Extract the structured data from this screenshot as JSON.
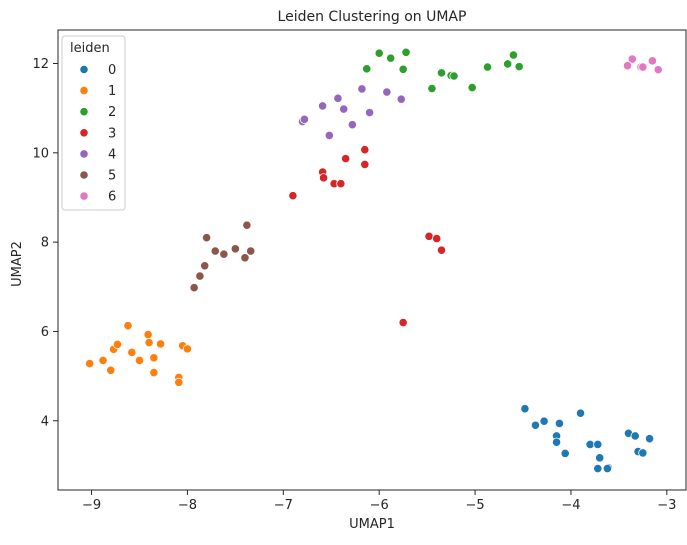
{
  "chart_data": {
    "type": "scatter",
    "title": "Leiden Clustering on UMAP",
    "xlabel": "UMAP1",
    "ylabel": "UMAP2",
    "xlim": [
      -9.35,
      -2.8
    ],
    "ylim": [
      2.45,
      12.75
    ],
    "xticks": [
      -9,
      -8,
      -7,
      -6,
      -5,
      -4,
      -3
    ],
    "yticks": [
      4,
      6,
      8,
      10,
      12
    ],
    "grid": false,
    "legend": {
      "title": "leiden",
      "placement": "top-left"
    },
    "series": [
      {
        "name": "0",
        "color": "#1f77b4",
        "points": [
          [
            -4.48,
            4.27
          ],
          [
            -4.37,
            3.9
          ],
          [
            -4.28,
            3.99
          ],
          [
            -4.15,
            3.66
          ],
          [
            -4.15,
            3.52
          ],
          [
            -4.12,
            3.94
          ],
          [
            -4.06,
            3.27
          ],
          [
            -3.9,
            4.17
          ],
          [
            -3.8,
            3.47
          ],
          [
            -3.72,
            3.47
          ],
          [
            -3.7,
            3.17
          ],
          [
            -3.72,
            2.93
          ],
          [
            -3.61,
            2.95
          ],
          [
            -3.62,
            2.93
          ],
          [
            -3.4,
            3.72
          ],
          [
            -3.33,
            3.66
          ],
          [
            -3.3,
            3.31
          ],
          [
            -3.25,
            3.28
          ],
          [
            -3.18,
            3.6
          ]
        ]
      },
      {
        "name": "1",
        "color": "#ff7f0e",
        "points": [
          [
            -9.02,
            5.28
          ],
          [
            -8.88,
            5.35
          ],
          [
            -8.8,
            5.13
          ],
          [
            -8.77,
            5.6
          ],
          [
            -8.73,
            5.71
          ],
          [
            -8.62,
            6.13
          ],
          [
            -8.58,
            5.53
          ],
          [
            -8.5,
            5.35
          ],
          [
            -8.41,
            5.93
          ],
          [
            -8.4,
            5.75
          ],
          [
            -8.35,
            5.41
          ],
          [
            -8.35,
            5.08
          ],
          [
            -8.28,
            5.72
          ],
          [
            -8.09,
            4.97
          ],
          [
            -8.09,
            4.86
          ],
          [
            -8.05,
            5.68
          ],
          [
            -8.0,
            5.61
          ]
        ]
      },
      {
        "name": "2",
        "color": "#2ca02c",
        "points": [
          [
            -6.13,
            11.88
          ],
          [
            -6.0,
            12.23
          ],
          [
            -5.88,
            12.12
          ],
          [
            -5.75,
            11.87
          ],
          [
            -5.72,
            12.25
          ],
          [
            -5.35,
            11.79
          ],
          [
            -5.25,
            11.73
          ],
          [
            -5.22,
            11.72
          ],
          [
            -5.45,
            11.44
          ],
          [
            -5.03,
            11.46
          ],
          [
            -4.87,
            11.92
          ],
          [
            -4.66,
            11.99
          ],
          [
            -4.6,
            12.19
          ],
          [
            -4.54,
            11.93
          ]
        ]
      },
      {
        "name": "3",
        "color": "#d62728",
        "points": [
          [
            -6.9,
            9.04
          ],
          [
            -6.59,
            9.57
          ],
          [
            -6.58,
            9.44
          ],
          [
            -6.47,
            9.31
          ],
          [
            -6.4,
            9.31
          ],
          [
            -6.35,
            9.87
          ],
          [
            -6.15,
            10.07
          ],
          [
            -6.15,
            9.74
          ],
          [
            -5.48,
            8.13
          ],
          [
            -5.4,
            8.08
          ],
          [
            -5.35,
            7.82
          ],
          [
            -5.75,
            6.2
          ]
        ]
      },
      {
        "name": "4",
        "color": "#9467bd",
        "points": [
          [
            -6.8,
            10.7
          ],
          [
            -6.78,
            10.75
          ],
          [
            -6.59,
            11.05
          ],
          [
            -6.52,
            10.39
          ],
          [
            -6.43,
            11.22
          ],
          [
            -6.37,
            10.98
          ],
          [
            -6.28,
            10.63
          ],
          [
            -6.18,
            11.43
          ],
          [
            -6.1,
            10.9
          ],
          [
            -5.92,
            11.36
          ],
          [
            -5.77,
            11.2
          ]
        ]
      },
      {
        "name": "5",
        "color": "#8c564b",
        "points": [
          [
            -7.38,
            8.38
          ],
          [
            -7.8,
            8.1
          ],
          [
            -7.34,
            7.8
          ],
          [
            -7.5,
            7.85
          ],
          [
            -7.71,
            7.8
          ],
          [
            -7.62,
            7.73
          ],
          [
            -7.4,
            7.65
          ],
          [
            -7.82,
            7.47
          ],
          [
            -7.87,
            7.24
          ],
          [
            -7.93,
            6.98
          ]
        ]
      },
      {
        "name": "6",
        "color": "#e377c2",
        "points": [
          [
            -3.36,
            12.1
          ],
          [
            -3.15,
            12.06
          ],
          [
            -3.41,
            11.95
          ],
          [
            -3.27,
            11.92
          ],
          [
            -3.25,
            11.92
          ],
          [
            -3.09,
            11.86
          ]
        ]
      }
    ]
  }
}
